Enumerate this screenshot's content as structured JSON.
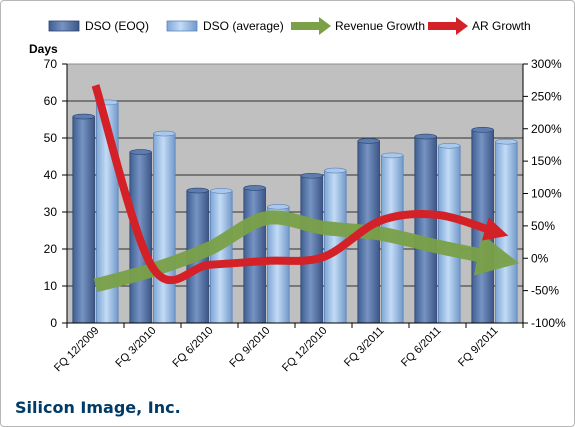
{
  "chart_data": {
    "type": "bar",
    "ylabel": "Days",
    "ylim": [
      0,
      70
    ],
    "y2lim": [
      -100,
      300
    ],
    "y_ticks": [
      "0",
      "10",
      "20",
      "30",
      "40",
      "50",
      "60",
      "70"
    ],
    "y2_ticks": [
      "-100%",
      "-50%",
      "0%",
      "50%",
      "100%",
      "150%",
      "200%",
      "250%",
      "300%"
    ],
    "categories": [
      "FQ 12/2009",
      "FQ 3/2010",
      "FQ 6/2010",
      "FQ 9/2010",
      "FQ 12/2010",
      "FQ 3/2011",
      "FQ 6/2011",
      "FQ 9/2011"
    ],
    "series": [
      {
        "name": "DSO (EOQ)",
        "type": "bar",
        "axis": "left",
        "color": "#4f6fa3",
        "values": [
          55.8,
          46.2,
          35.8,
          36.5,
          39.8,
          49.2,
          50.4,
          52.2
        ]
      },
      {
        "name": "DSO (average)",
        "type": "bar",
        "axis": "left",
        "color": "#95b8e0",
        "values": [
          59.6,
          51.2,
          35.7,
          31.4,
          41.2,
          45.3,
          47.9,
          49.0
        ]
      },
      {
        "name": "Revenue Growth",
        "type": "line",
        "axis": "right",
        "color": "#7aa148",
        "values": [
          -42,
          -18,
          15,
          62,
          47,
          38,
          18,
          0
        ]
      },
      {
        "name": "AR Growth",
        "type": "line",
        "axis": "right",
        "color": "#d42027",
        "values": [
          267,
          -14,
          -10,
          -4,
          2,
          58,
          67,
          41
        ]
      }
    ],
    "legend_position": "top",
    "grid": true,
    "plot_background": "#c0c0c0"
  },
  "footer": {
    "company": "Silicon Image, Inc."
  }
}
